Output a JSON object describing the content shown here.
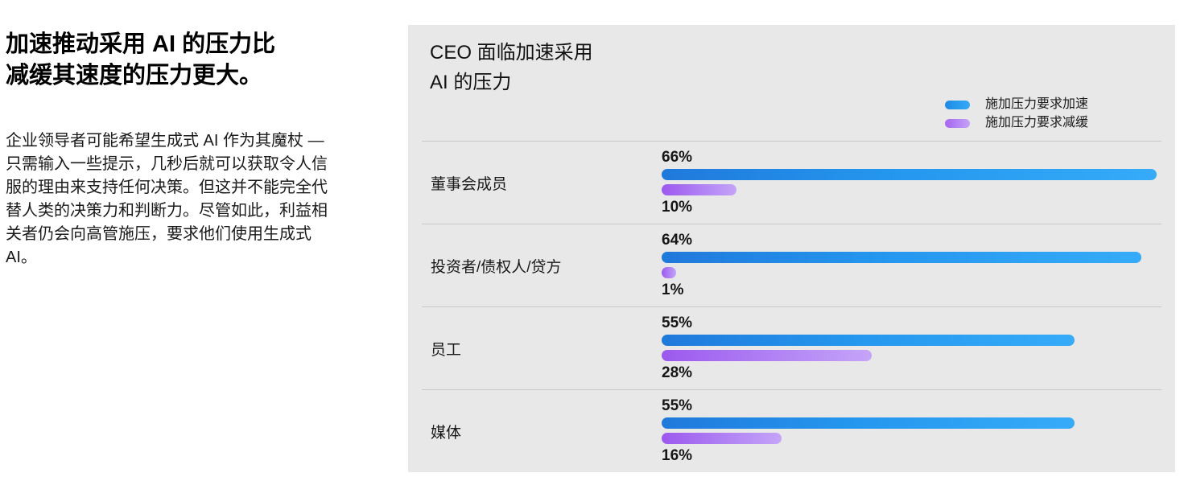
{
  "left": {
    "heading_lines": [
      "加速推动采用 AI 的压力比",
      "减缓其速度的压力更大。"
    ],
    "paragraph_lines": [
      "企业领导者可能希望生成式 AI 作为其魔杖 —",
      "只需输入一些提示，几秒后就可以获取令人信",
      "服的理由来支持任何决策。但这并不能完全代",
      "替人类的决策力和判断力。尽管如此，利益相",
      "关者仍会向高管施压，要求他们使用生成式",
      "AI。"
    ]
  },
  "chart": {
    "title_lines": [
      "CEO 面临加速采用",
      "AI 的压力"
    ],
    "legend": [
      {
        "label": "施加压力要求加速",
        "color": "#2496ee"
      },
      {
        "label": "施加压力要求减缓",
        "color": "#b183f4"
      }
    ],
    "panel_background": "#e8e8e8"
  },
  "chart_data": {
    "type": "bar",
    "orientation": "horizontal",
    "title": "CEO 面临加速采用 AI 的压力",
    "categories": [
      "董事会成员",
      "投资者/债权人/贷方",
      "员工",
      "媒体"
    ],
    "series": [
      {
        "name": "施加压力要求加速",
        "color": "#2496ee",
        "values": [
          66,
          64,
          55,
          55
        ]
      },
      {
        "name": "施加压力要求减缓",
        "color": "#b183f4",
        "values": [
          10,
          1,
          28,
          16
        ]
      }
    ],
    "value_suffix": "%",
    "xlim": [
      0,
      100
    ],
    "grid": false,
    "legend_position": "top-right",
    "value_labels": "shown above accelerate bar and below decelerate bar"
  }
}
